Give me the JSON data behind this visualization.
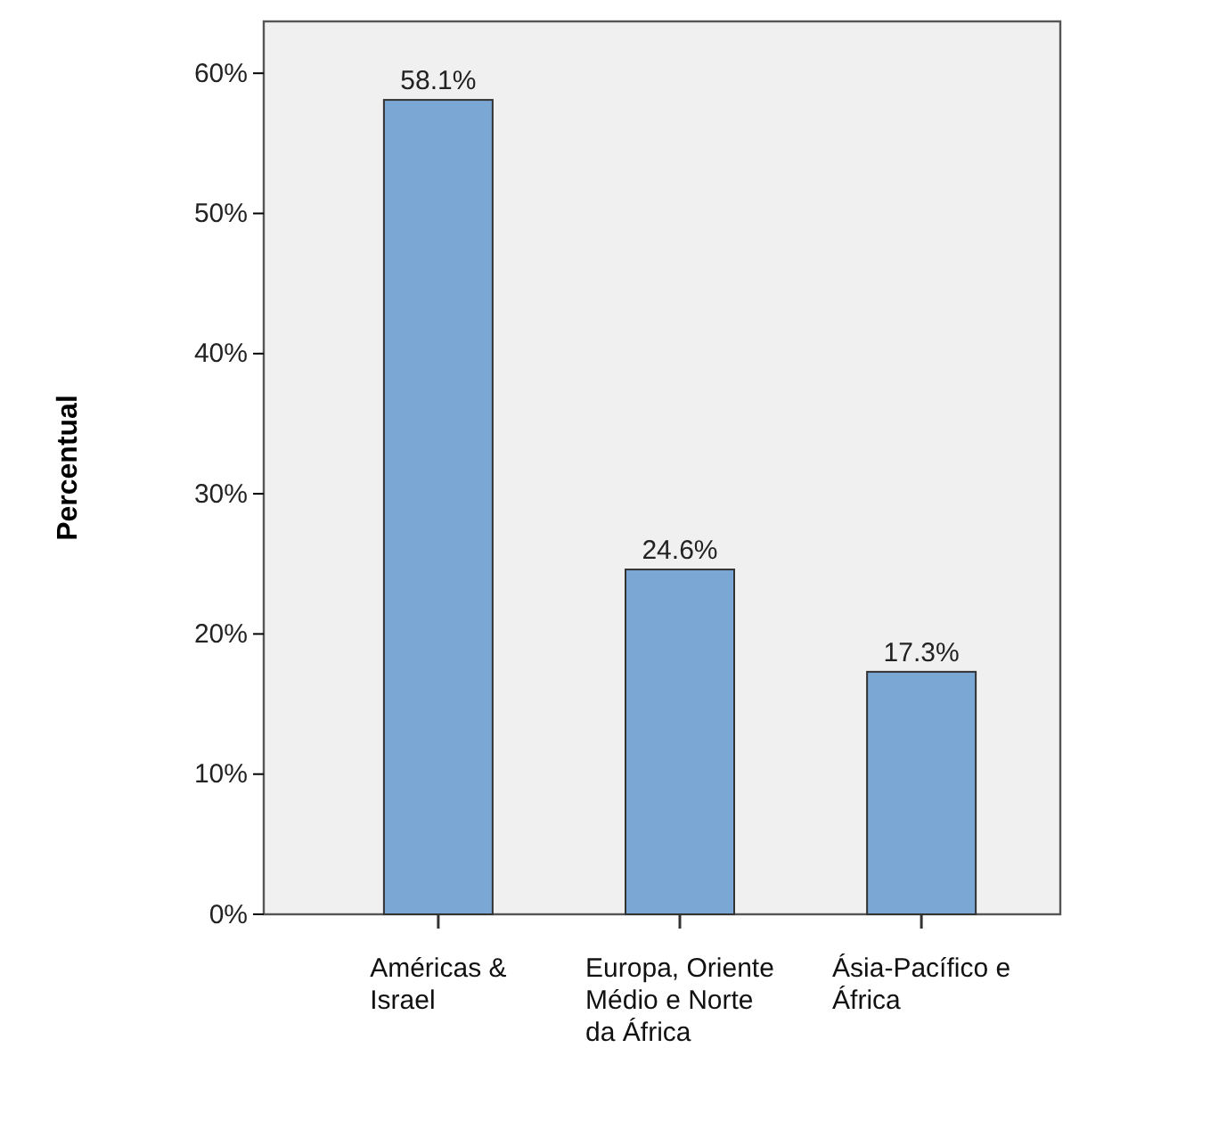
{
  "chart_data": {
    "type": "bar",
    "ylabel": "Percentual",
    "categories": [
      "Américas & Israel",
      "Europa, Oriente Médio e Norte da África",
      "Ásia-Pacífico e África"
    ],
    "values": [
      58.1,
      24.6,
      17.3
    ],
    "value_labels": [
      "58.1%",
      "24.6%",
      "17.3%"
    ],
    "color": "#7ba7d5",
    "ylim": [
      0,
      63.7
    ],
    "yticks": [
      {
        "value": 0,
        "label": "0%"
      },
      {
        "value": 10,
        "label": "10%"
      },
      {
        "value": 20,
        "label": "20%"
      },
      {
        "value": 30,
        "label": "30%"
      },
      {
        "value": 40,
        "label": "40%"
      },
      {
        "value": 50,
        "label": "50%"
      },
      {
        "value": 60,
        "label": "60%"
      }
    ],
    "grid": false
  }
}
